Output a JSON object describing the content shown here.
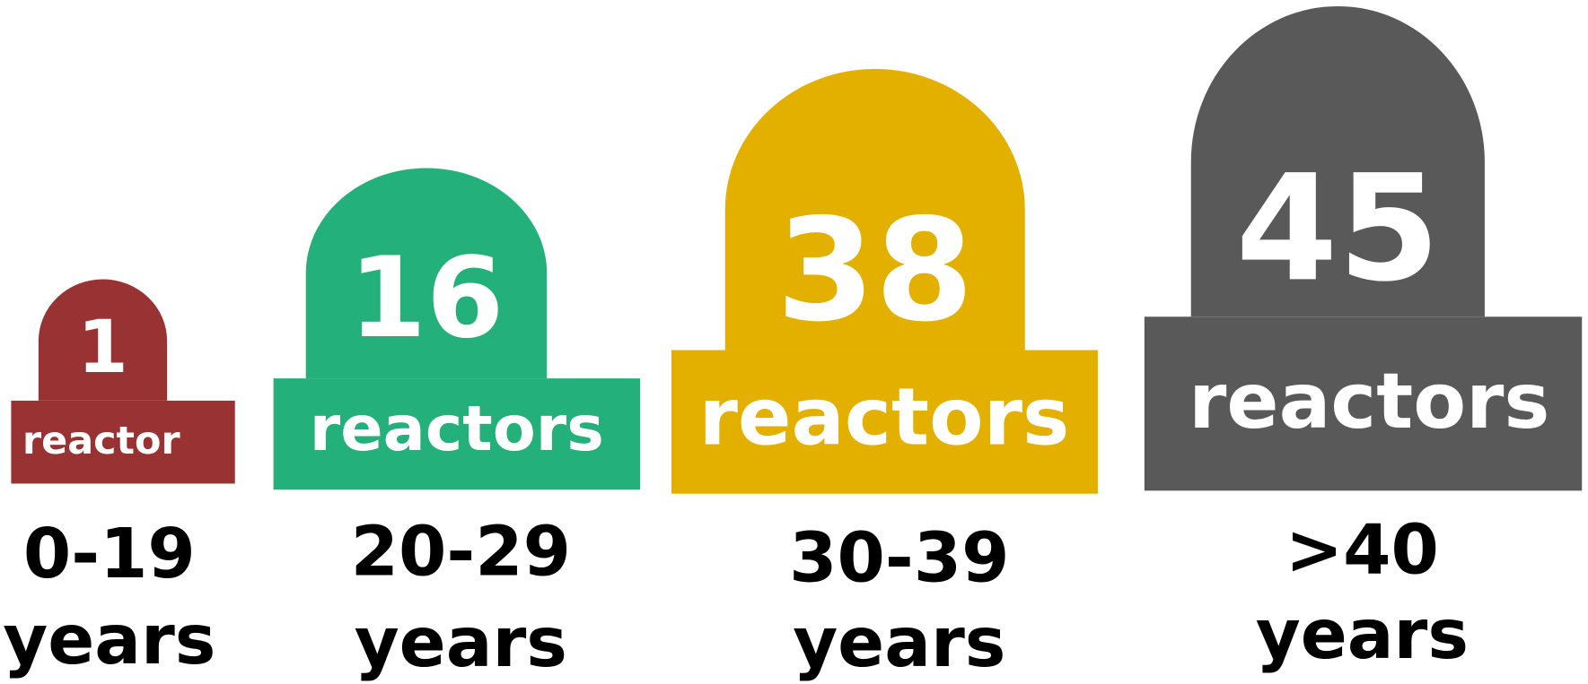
{
  "items": [
    {
      "count": "1",
      "count_label": "reactor",
      "range": "0-19",
      "range_unit": "years",
      "color": "#993333"
    },
    {
      "count": "16",
      "count_label": "reactors",
      "range": "20-29",
      "range_unit": "years",
      "color": "#23b07a"
    },
    {
      "count": "38",
      "count_label": "reactors",
      "range": "30-39",
      "range_unit": "years",
      "color": "#e3b000"
    },
    {
      "count": "45",
      "count_label": "reactors",
      "range": ">40",
      "range_unit": "years",
      "color": "#595959"
    }
  ]
}
